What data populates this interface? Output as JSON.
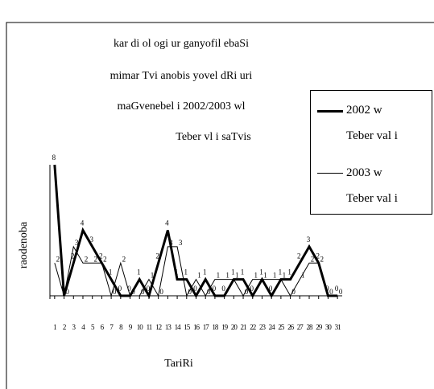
{
  "chart_data": {
    "type": "line",
    "title": [
      "kar di ol ogi ur ganyofil ebaSi",
      "mimar Tvi anobis yovel dRi uri",
      "maGvenebel i 2002/2003 wl",
      "Teber vl i saTvis"
    ],
    "y_label": "raodenoba",
    "x_label": "TariRi",
    "categories": [
      "1",
      "2",
      "3",
      "4",
      "5",
      "6",
      "7",
      "8",
      "9",
      "10",
      "11",
      "12",
      "13",
      "14",
      "15",
      "16",
      "17",
      "18",
      "19",
      "20",
      "21",
      "22",
      "23",
      "24",
      "25",
      "26",
      "27",
      "28",
      "29",
      "30",
      "31"
    ],
    "ylim": [
      0,
      8
    ],
    "series": [
      {
        "name": "2002 w Teber val i",
        "color": "#000000",
        "width": 3,
        "values": [
          8,
          0,
          2,
          4,
          3,
          2,
          1,
          0,
          0,
          1,
          0,
          2,
          4,
          1,
          1,
          0,
          1,
          0,
          0,
          1,
          1,
          0,
          1,
          0,
          1,
          1,
          2,
          3,
          2,
          0,
          0
        ]
      },
      {
        "name": "2003 w Teber val i",
        "color": "#000000",
        "width": 1,
        "values": [
          2,
          0,
          3,
          2,
          2,
          2,
          0,
          2,
          0,
          0,
          1,
          0,
          3,
          3,
          0,
          1,
          0,
          1,
          1,
          1,
          0,
          1,
          1,
          1,
          1,
          0,
          1,
          2,
          2,
          0,
          0
        ]
      }
    ]
  }
}
